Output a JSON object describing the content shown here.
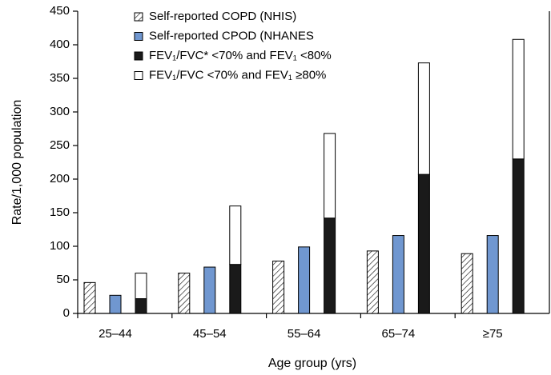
{
  "chart_data": {
    "type": "bar",
    "x_label": "Age group (yrs)",
    "y_label": "Rate/1,000 population",
    "categories": [
      "25–44",
      "45–54",
      "55–64",
      "65–74",
      "≥75"
    ],
    "series": [
      {
        "name": "Self-reported COPD (NHIS)",
        "color": "#ffffff",
        "hatch": true,
        "values": [
          46,
          60,
          78,
          93,
          89
        ]
      },
      {
        "name": "Self-reported CPOD (NHANES",
        "color": "#7097d0",
        "values": [
          27,
          69,
          99,
          116,
          116
        ]
      },
      {
        "name": "FEV₁/FVC* <70% and FEV₁ <80%",
        "color": "#1a1a1a",
        "stacked": true,
        "values": [
          22,
          73,
          142,
          207,
          230
        ]
      },
      {
        "name": "FEV₁/FVC <70% and FEV₁ ≥80%",
        "color": "#ffffff",
        "stacked": true,
        "values": [
          38,
          87,
          126,
          166,
          178
        ]
      }
    ],
    "ylim": [
      0,
      450
    ],
    "yticks": [
      0,
      50,
      100,
      150,
      200,
      250,
      300,
      350,
      400,
      450
    ],
    "grid": false
  }
}
